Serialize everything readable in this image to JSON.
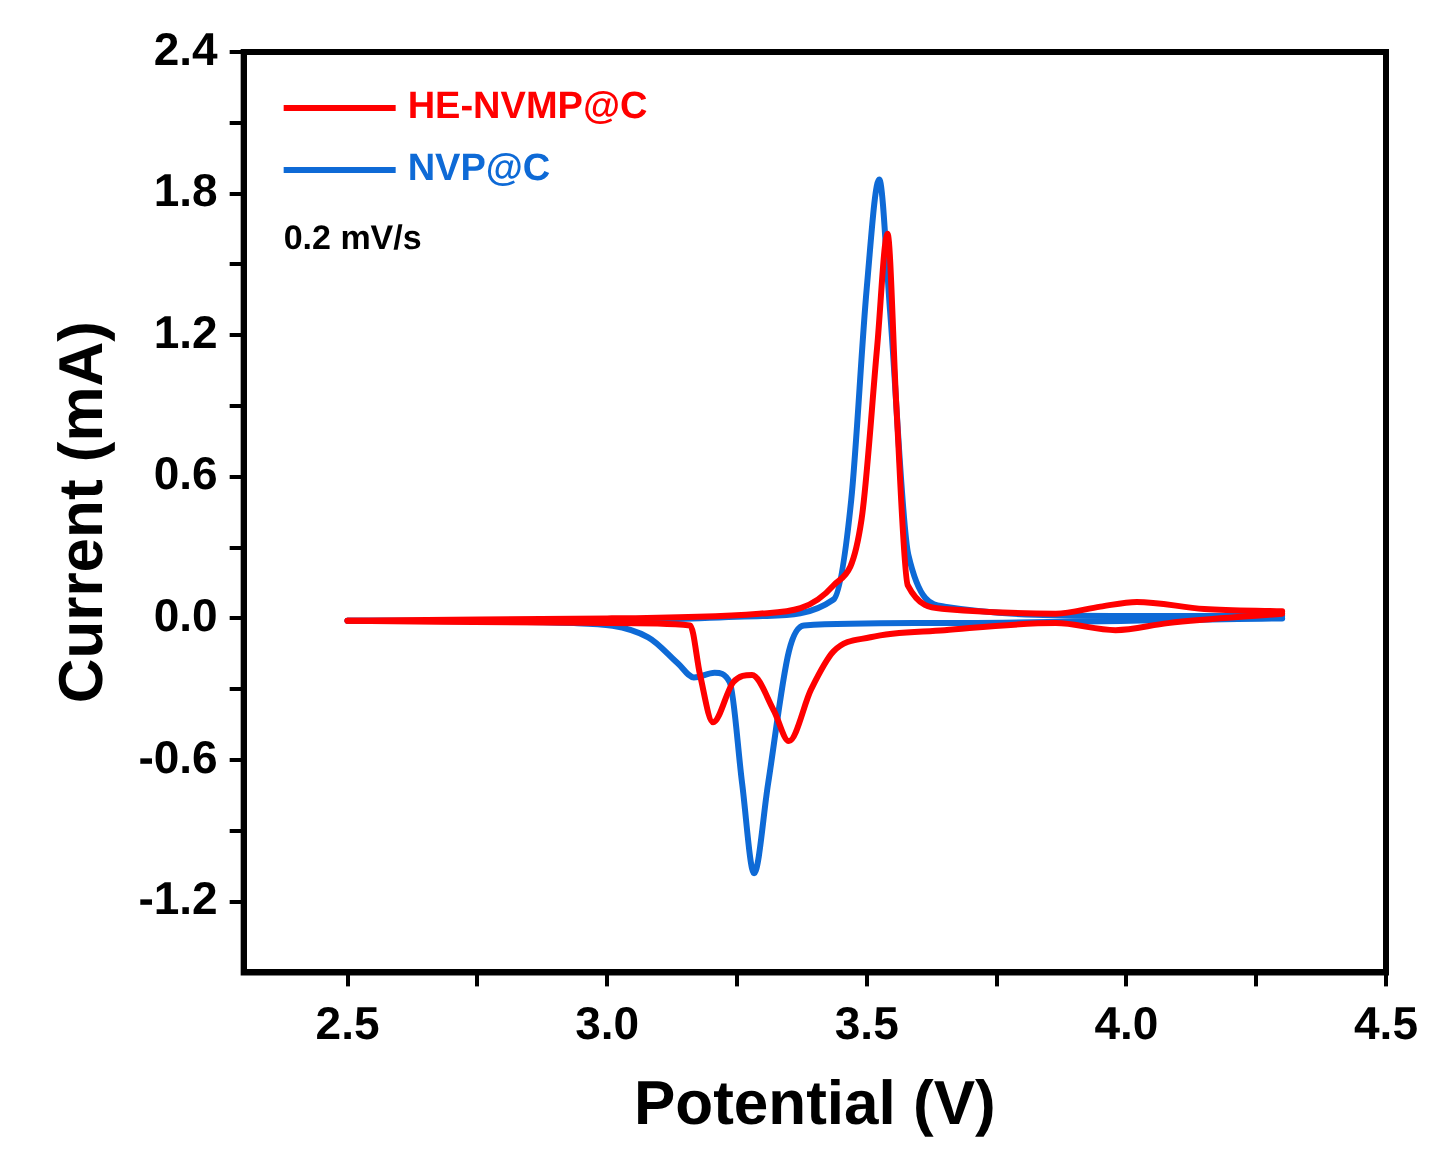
{
  "chart_data": {
    "type": "line",
    "xlabel": "Potential (V)",
    "ylabel": "Current (mA)",
    "xlim": [
      2.3,
      4.5
    ],
    "ylim": [
      -1.5,
      2.4
    ],
    "xticks": [
      2.5,
      {
        "value": 2.75,
        "label": null
      },
      {
        "value": 3,
        "label": "3.0"
      },
      {
        "value": 3.25,
        "label": null
      },
      3.5,
      {
        "value": 3.75,
        "label": null
      },
      {
        "value": 4,
        "label": "4.0"
      },
      {
        "value": 4.25,
        "label": null
      },
      4.5
    ],
    "yticks": [
      -1.2,
      {
        "value": -0.9,
        "label": null
      },
      -0.6,
      {
        "value": -0.3,
        "label": null
      },
      {
        "value": 0,
        "label": "0.0"
      },
      {
        "value": 0.3,
        "label": null
      },
      0.6,
      {
        "value": 0.9,
        "label": null
      },
      1.2,
      {
        "value": 1.5,
        "label": null
      },
      1.8,
      {
        "value": 2.1,
        "label": null
      },
      2.4
    ],
    "grid": false,
    "legend": "top left",
    "marker": "none",
    "line_style": "solid",
    "annotations": [
      "0.2 mV/s"
    ],
    "series": [
      {
        "name": "HE-NVMP@C",
        "color": "#ff0000",
        "x": [
          2.5,
          3.0,
          3.293,
          3.436,
          3.49,
          3.52,
          3.54,
          3.557,
          3.579,
          3.65,
          3.864,
          3.95,
          4.02,
          4.15,
          4.3
        ],
        "values": [
          -0.01,
          0.0,
          0.02,
          0.14,
          0.42,
          1.15,
          1.63,
          0.9,
          0.14,
          0.04,
          0.02,
          0.05,
          0.07,
          0.04,
          0.03
        ]
      },
      {
        "color": "#ff0000",
        "x": [
          2.5,
          3.007,
          3.16,
          3.179,
          3.204,
          3.243,
          3.279,
          3.321,
          3.35,
          3.393,
          3.436,
          3.507,
          3.65,
          3.864,
          3.979,
          4.08,
          4.3
        ],
        "values": [
          -0.01,
          -0.02,
          -0.03,
          -0.24,
          -0.44,
          -0.27,
          -0.24,
          -0.39,
          -0.52,
          -0.3,
          -0.14,
          -0.08,
          -0.05,
          -0.02,
          -0.05,
          -0.02,
          0.02
        ]
      },
      {
        "name": "NVP@C",
        "color": "#0e6ad6",
        "x": [
          2.5,
          3.0,
          3.3,
          3.436,
          3.47,
          3.5,
          3.524,
          3.545,
          3.58,
          3.65,
          4.0,
          4.3
        ],
        "values": [
          -0.01,
          -0.01,
          0.01,
          0.08,
          0.5,
          1.4,
          1.86,
          1.3,
          0.27,
          0.05,
          0.01,
          0.01
        ]
      },
      {
        "color": "#0e6ad6",
        "x": [
          2.5,
          2.936,
          3.079,
          3.136,
          3.167,
          3.207,
          3.236,
          3.26,
          3.283,
          3.31,
          3.35,
          3.379,
          3.6,
          4.3
        ],
        "values": [
          -0.01,
          -0.02,
          -0.08,
          -0.19,
          -0.25,
          -0.23,
          -0.27,
          -0.7,
          -1.08,
          -0.7,
          -0.14,
          -0.03,
          -0.02,
          0.0
        ]
      }
    ]
  }
}
